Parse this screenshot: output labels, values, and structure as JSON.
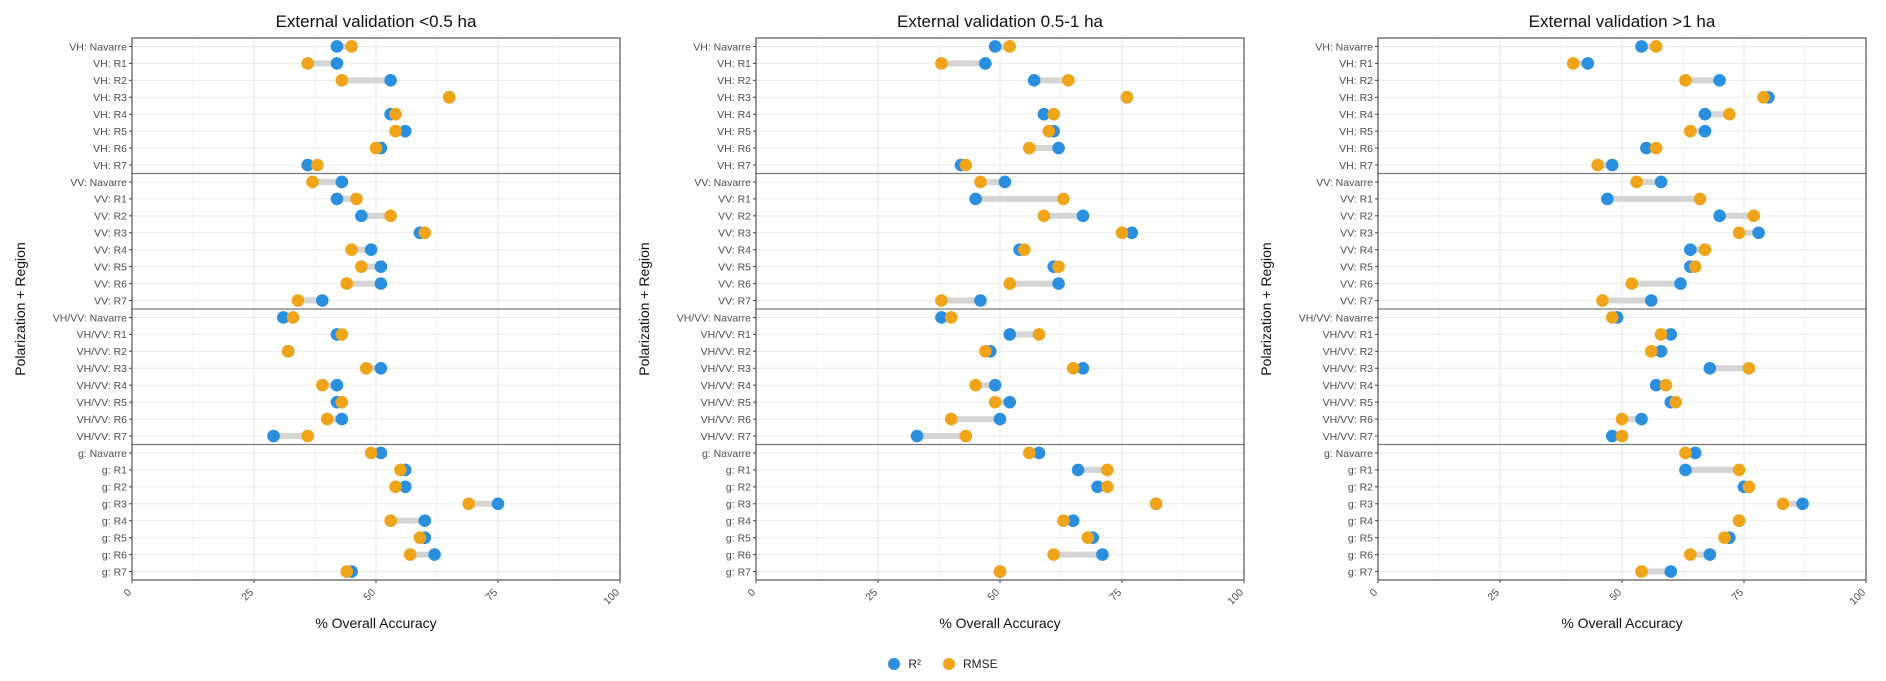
{
  "legend": {
    "items": [
      {
        "label": "R²",
        "color": "#2b8fe0"
      },
      {
        "label": "RMSE",
        "color": "#f0a419"
      }
    ]
  },
  "colors": {
    "r2": "#2b8fe0",
    "rmse": "#f0a419",
    "segment": "#d5d5d5",
    "grid": "#ebebeb",
    "separator": "#7a7a7a"
  },
  "chart_data": [
    {
      "type": "dumbbell",
      "title": "External validation <0.5 ha",
      "xlabel": "% Overall Accuracy",
      "ylabel": "Polarization + Region",
      "xlim": [
        0,
        100
      ],
      "xticks": [
        "0",
        "25",
        "50",
        "75",
        "100"
      ],
      "grid": true,
      "categories": [
        "VH: Navarre",
        "VH: R1",
        "VH: R2",
        "VH: R3",
        "VH: R4",
        "VH: R5",
        "VH: R6",
        "VH: R7",
        "VV: Navarre",
        "VV: R1",
        "VV: R2",
        "VV: R3",
        "VV: R4",
        "VV: R5",
        "VV: R6",
        "VV: R7",
        "VH/VV: Navarre",
        "VH/VV: R1",
        "VH/VV: R2",
        "VH/VV: R3",
        "VH/VV: R4",
        "VH/VV: R5",
        "VH/VV: R6",
        "VH/VV: R7",
        "g: Navarre",
        "g: R1",
        "g: R2",
        "g: R3",
        "g: R4",
        "g: R5",
        "g: R6",
        "g: R7"
      ],
      "series": [
        {
          "name": "R²",
          "values": [
            42,
            42,
            53,
            65,
            53,
            56,
            51,
            36,
            43,
            42,
            47,
            59,
            49,
            51,
            51,
            39,
            31,
            42,
            32,
            51,
            42,
            42,
            43,
            29,
            51,
            56,
            56,
            75,
            60,
            60,
            62,
            45
          ]
        },
        {
          "name": "RMSE",
          "values": [
            45,
            36,
            43,
            65,
            54,
            54,
            50,
            38,
            37,
            46,
            53,
            60,
            45,
            47,
            44,
            34,
            33,
            43,
            32,
            48,
            39,
            43,
            40,
            36,
            49,
            55,
            54,
            69,
            53,
            59,
            57,
            44
          ]
        }
      ]
    },
    {
      "type": "dumbbell",
      "title": "External validation 0.5-1 ha",
      "xlabel": "% Overall Accuracy",
      "ylabel": "Polarization + Region",
      "xlim": [
        0,
        100
      ],
      "xticks": [
        "0",
        "25",
        "50",
        "75",
        "100"
      ],
      "grid": true,
      "categories": [
        "VH: Navarre",
        "VH: R1",
        "VH: R2",
        "VH: R3",
        "VH: R4",
        "VH: R5",
        "VH: R6",
        "VH: R7",
        "VV: Navarre",
        "VV: R1",
        "VV: R2",
        "VV: R3",
        "VV: R4",
        "VV: R5",
        "VV: R6",
        "VV: R7",
        "VH/VV: Navarre",
        "VH/VV: R1",
        "VH/VV: R2",
        "VH/VV: R3",
        "VH/VV: R4",
        "VH/VV: R5",
        "VH/VV: R6",
        "VH/VV: R7",
        "g: Navarre",
        "g: R1",
        "g: R2",
        "g: R3",
        "g: R4",
        "g: R5",
        "g: R6",
        "g: R7"
      ],
      "series": [
        {
          "name": "R²",
          "values": [
            49,
            47,
            57,
            76,
            59,
            61,
            62,
            42,
            51,
            45,
            67,
            77,
            54,
            61,
            62,
            46,
            38,
            52,
            48,
            67,
            49,
            52,
            50,
            33,
            58,
            66,
            70,
            82,
            65,
            69,
            71,
            50
          ]
        },
        {
          "name": "RMSE",
          "values": [
            52,
            38,
            64,
            76,
            61,
            60,
            56,
            43,
            46,
            63,
            59,
            75,
            55,
            62,
            52,
            38,
            40,
            58,
            47,
            65,
            45,
            49,
            40,
            43,
            56,
            72,
            72,
            82,
            63,
            68,
            61,
            50
          ]
        }
      ]
    },
    {
      "type": "dumbbell",
      "title": "External validation >1 ha",
      "xlabel": "% Overall Accuracy",
      "ylabel": "Polarization + Region",
      "xlim": [
        0,
        100
      ],
      "xticks": [
        "0",
        "25",
        "50",
        "75",
        "100"
      ],
      "grid": true,
      "categories": [
        "VH: Navarre",
        "VH: R1",
        "VH: R2",
        "VH: R3",
        "VH: R4",
        "VH: R5",
        "VH: R6",
        "VH: R7",
        "VV: Navarre",
        "VV: R1",
        "VV: R2",
        "VV: R3",
        "VV: R4",
        "VV: R5",
        "VV: R6",
        "VV: R7",
        "VH/VV: Navarre",
        "VH/VV: R1",
        "VH/VV: R2",
        "VH/VV: R3",
        "VH/VV: R4",
        "VH/VV: R5",
        "VH/VV: R6",
        "VH/VV: R7",
        "g: Navarre",
        "g: R1",
        "g: R2",
        "g: R3",
        "g: R4",
        "g: R5",
        "g: R6",
        "g: R7"
      ],
      "series": [
        {
          "name": "R²",
          "values": [
            54,
            43,
            70,
            80,
            67,
            67,
            55,
            48,
            58,
            47,
            70,
            78,
            64,
            64,
            62,
            56,
            49,
            60,
            58,
            68,
            57,
            60,
            54,
            48,
            65,
            63,
            75,
            87,
            74,
            72,
            68,
            60
          ]
        },
        {
          "name": "RMSE",
          "values": [
            57,
            40,
            63,
            79,
            72,
            64,
            57,
            45,
            53,
            66,
            77,
            74,
            67,
            65,
            52,
            46,
            48,
            58,
            56,
            76,
            59,
            61,
            50,
            50,
            63,
            74,
            76,
            83,
            74,
            71,
            64,
            54
          ]
        }
      ]
    }
  ]
}
